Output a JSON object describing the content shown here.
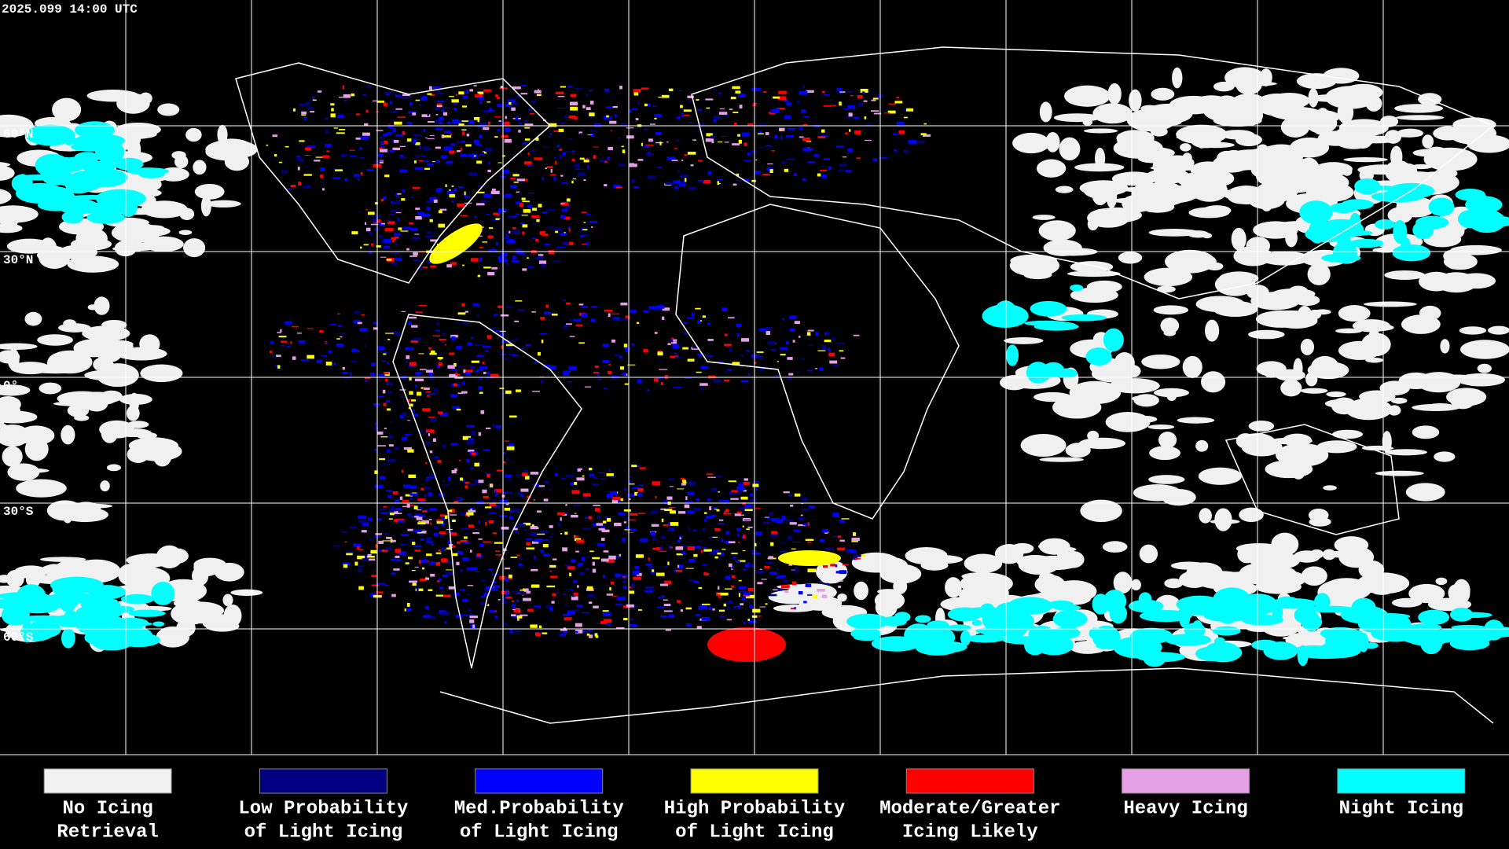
{
  "header": {
    "timestamp": "2025.099 14:00 UTC"
  },
  "map": {
    "latitude_labels": [
      "60°N",
      "30°N",
      "0°",
      "30°S",
      "60°S"
    ]
  },
  "legend": {
    "items": [
      {
        "lines": [
          "No Icing",
          "Retrieval"
        ],
        "color": "#f0f0f0"
      },
      {
        "lines": [
          "Low Probability",
          "of Light Icing"
        ],
        "color": "#000080"
      },
      {
        "lines": [
          "Med.Probability",
          "of Light Icing"
        ],
        "color": "#0000ff"
      },
      {
        "lines": [
          "High Probability",
          "of Light Icing"
        ],
        "color": "#ffff00"
      },
      {
        "lines": [
          "Moderate/Greater",
          "Icing Likely"
        ],
        "color": "#ff0000"
      },
      {
        "lines": [
          "Heavy Icing"
        ],
        "color": "#e6a0e6"
      },
      {
        "lines": [
          "Night Icing"
        ],
        "color": "#00ffff"
      }
    ]
  }
}
